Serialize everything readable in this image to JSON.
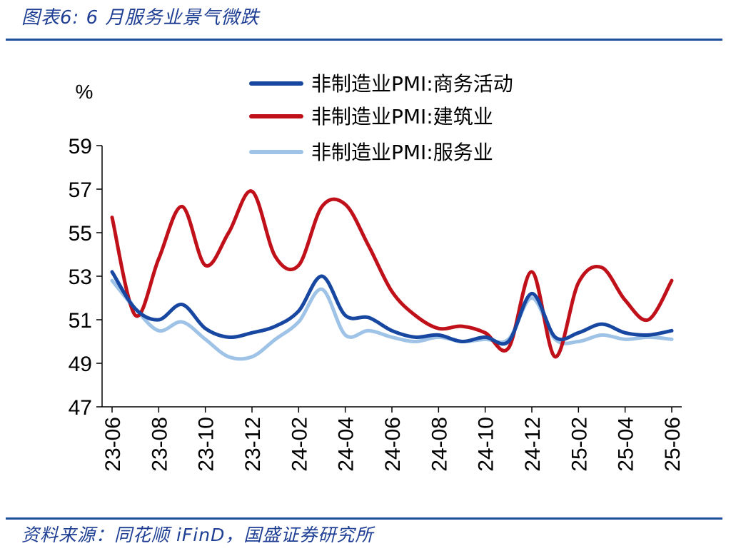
{
  "header": {
    "title": "图表6:  6 月服务业景气微跌"
  },
  "footer": {
    "source": "资料来源：同花顺 iFinD，国盛证券研究所"
  },
  "colors": {
    "rule": "#1f4e9c",
    "title": "#1f3f94"
  },
  "chart_data": {
    "type": "line",
    "title": "",
    "unit_label": "%",
    "ylim": [
      47,
      59
    ],
    "yticks": [
      47,
      49,
      51,
      53,
      55,
      57,
      59
    ],
    "x": [
      "23-06",
      "23-07",
      "23-08",
      "23-09",
      "23-10",
      "23-11",
      "23-12",
      "24-01",
      "24-02",
      "24-03",
      "24-04",
      "24-05",
      "24-06",
      "24-07",
      "24-08",
      "24-09",
      "24-10",
      "24-11",
      "24-12",
      "25-01",
      "25-02",
      "25-03",
      "25-04",
      "25-05",
      "25-06"
    ],
    "xtick_labels": [
      "23-06",
      "23-08",
      "23-10",
      "23-12",
      "24-02",
      "24-04",
      "24-06",
      "24-08",
      "24-10",
      "24-12",
      "25-02",
      "25-04",
      "25-06"
    ],
    "legend_position": "top",
    "grid": false,
    "series": [
      {
        "name": "非制造业PMI:商务活动",
        "color": "#1747a0",
        "values": [
          53.2,
          51.5,
          51.0,
          51.7,
          50.6,
          50.2,
          50.4,
          50.7,
          51.4,
          53.0,
          51.2,
          51.1,
          50.5,
          50.2,
          50.3,
          50.0,
          50.2,
          50.0,
          52.2,
          50.2,
          50.4,
          50.8,
          50.4,
          50.3,
          50.5
        ]
      },
      {
        "name": "非制造业PMI:建筑业",
        "color": "#c0111a",
        "values": [
          55.7,
          51.2,
          53.8,
          56.2,
          53.5,
          55.0,
          56.9,
          53.9,
          53.5,
          56.2,
          56.3,
          54.4,
          52.3,
          51.2,
          50.6,
          50.7,
          50.4,
          49.7,
          53.2,
          49.3,
          52.7,
          53.4,
          51.9,
          51.0,
          52.8
        ]
      },
      {
        "name": "非制造业PMI:服务业",
        "color": "#9fc3e7",
        "values": [
          52.8,
          51.5,
          50.5,
          50.9,
          50.1,
          49.3,
          49.3,
          50.1,
          50.9,
          52.4,
          50.3,
          50.5,
          50.2,
          50.0,
          50.2,
          50.0,
          50.1,
          50.1,
          52.0,
          50.1,
          50.0,
          50.3,
          50.1,
          50.2,
          50.1
        ]
      }
    ]
  }
}
